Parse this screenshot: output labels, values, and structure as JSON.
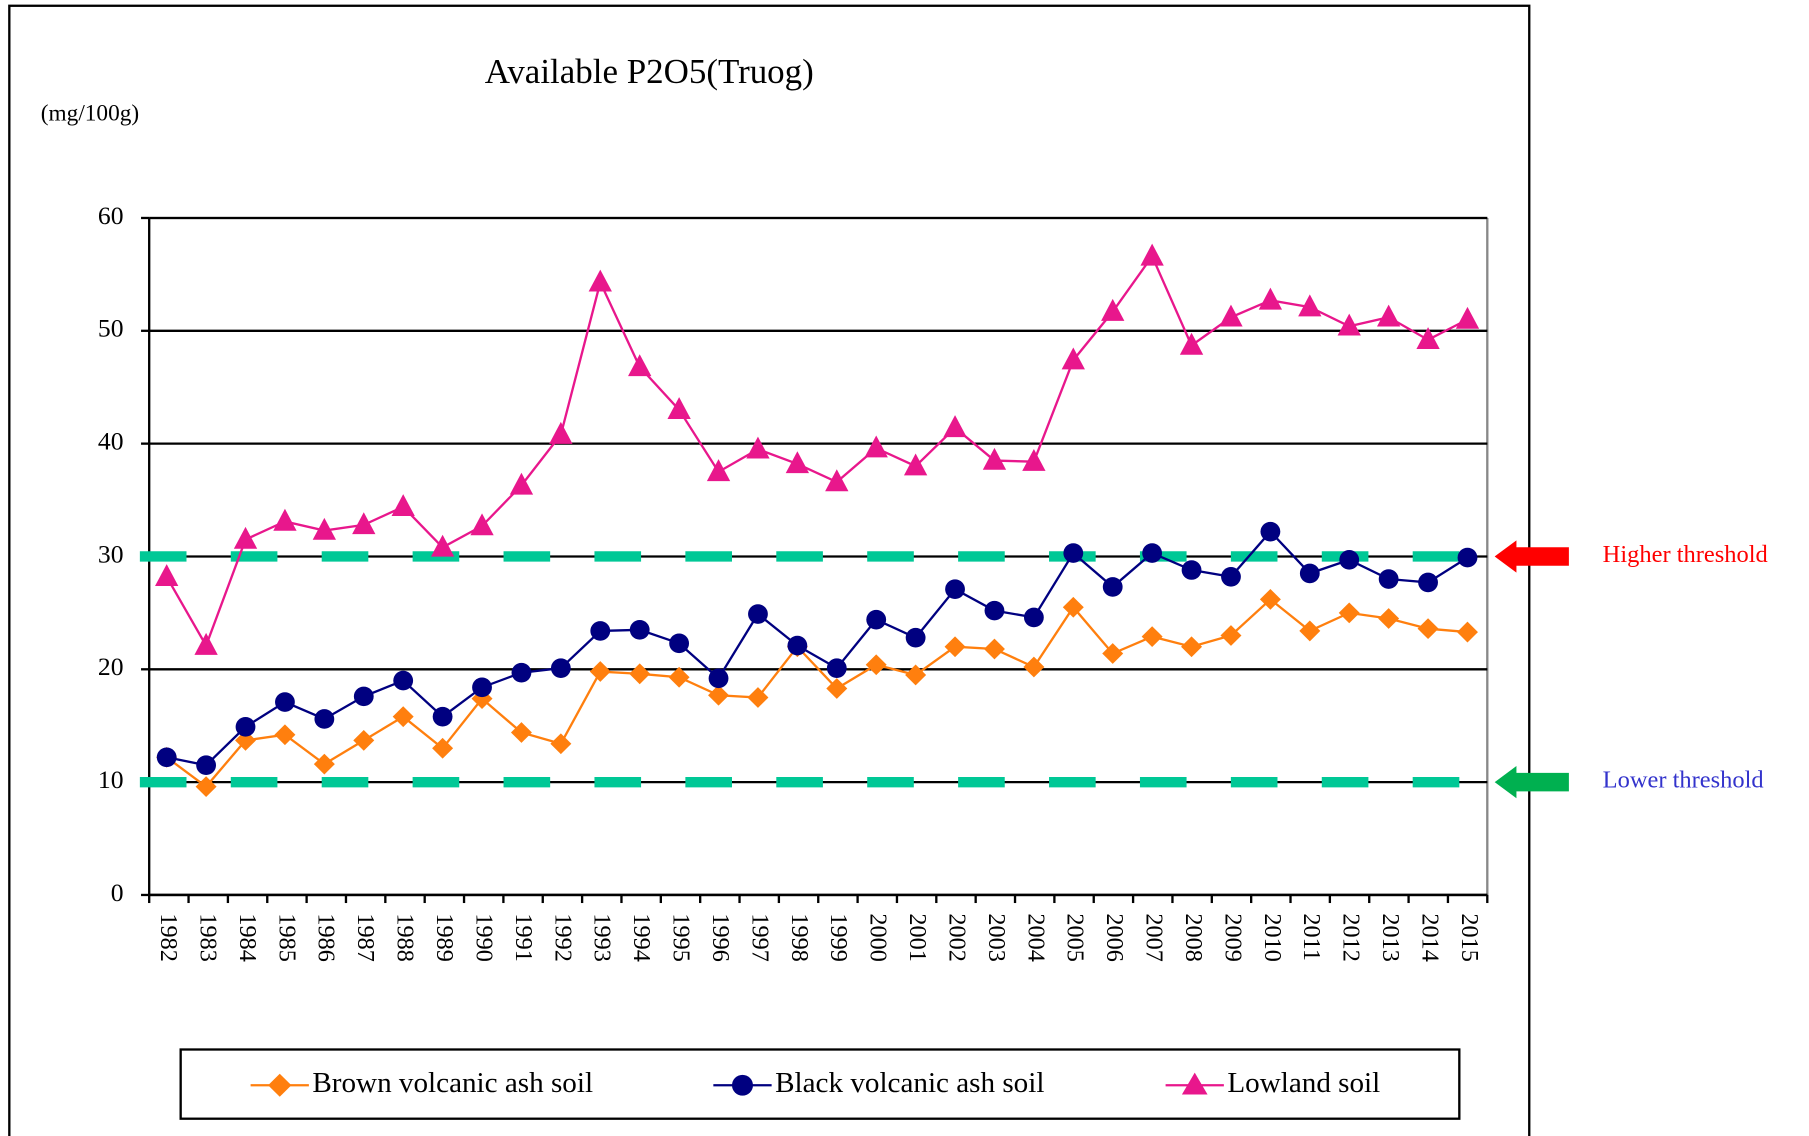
{
  "chart_data": {
    "type": "line",
    "title": "Available P2O5(Truog)",
    "y_label": "(mg/100g)",
    "x": [
      "1982",
      "1983",
      "1984",
      "1985",
      "1986",
      "1987",
      "1988",
      "1989",
      "1990",
      "1991",
      "1992",
      "1993",
      "1994",
      "1995",
      "1996",
      "1997",
      "1998",
      "1999",
      "2000",
      "2001",
      "2002",
      "2003",
      "2004",
      "2005",
      "2006",
      "2007",
      "2008",
      "2009",
      "2010",
      "2011",
      "2012",
      "2013",
      "2014",
      "2015"
    ],
    "ylim": [
      0,
      60
    ],
    "yticks": [
      0,
      10,
      20,
      30,
      40,
      50,
      60
    ],
    "grid": true,
    "legend": "bottom",
    "series": [
      {
        "name": "Brown volcanic ash soil",
        "color": "#ff7f0e",
        "marker": "diamond",
        "values": [
          12.2,
          9.6,
          13.7,
          14.2,
          11.6,
          13.7,
          15.8,
          13.0,
          17.4,
          14.4,
          13.4,
          19.8,
          19.6,
          19.3,
          17.7,
          17.5,
          22.0,
          18.3,
          20.4,
          19.5,
          22.0,
          21.8,
          20.2,
          25.5,
          21.4,
          22.9,
          22.0,
          23.0,
          26.2,
          23.4,
          25.0,
          24.5,
          23.6,
          23.3
        ]
      },
      {
        "name": "Black volcanic ash soil",
        "color": "#000080",
        "marker": "circle",
        "values": [
          12.2,
          11.5,
          14.9,
          17.1,
          15.6,
          17.6,
          19.0,
          15.8,
          18.4,
          19.7,
          20.1,
          23.4,
          23.5,
          22.3,
          19.2,
          24.9,
          22.1,
          20.1,
          24.4,
          22.8,
          27.1,
          25.2,
          24.6,
          30.3,
          27.3,
          30.3,
          28.8,
          28.2,
          32.2,
          28.5,
          29.7,
          28.0,
          27.7,
          29.9
        ]
      },
      {
        "name": "Lowland soil",
        "color": "#e8178c",
        "marker": "triangle",
        "values": [
          28.2,
          22.1,
          31.5,
          33.1,
          32.3,
          32.8,
          34.4,
          30.8,
          32.7,
          36.3,
          40.8,
          54.3,
          46.8,
          43.0,
          37.5,
          39.5,
          38.2,
          36.6,
          39.6,
          38.0,
          41.4,
          38.5,
          38.4,
          47.4,
          51.7,
          56.6,
          48.7,
          51.2,
          52.7,
          52.1,
          50.4,
          51.2,
          49.2,
          51.0
        ]
      }
    ],
    "thresholds": [
      {
        "name": "Higher threshold",
        "value": 30,
        "line_color": "#00c896",
        "arrow_color": "#ff0000",
        "text_color": "#ff0000"
      },
      {
        "name": "Lower threshold",
        "value": 10,
        "line_color": "#00c896",
        "arrow_color": "#00b050",
        "text_color": "#3333cc"
      }
    ]
  }
}
